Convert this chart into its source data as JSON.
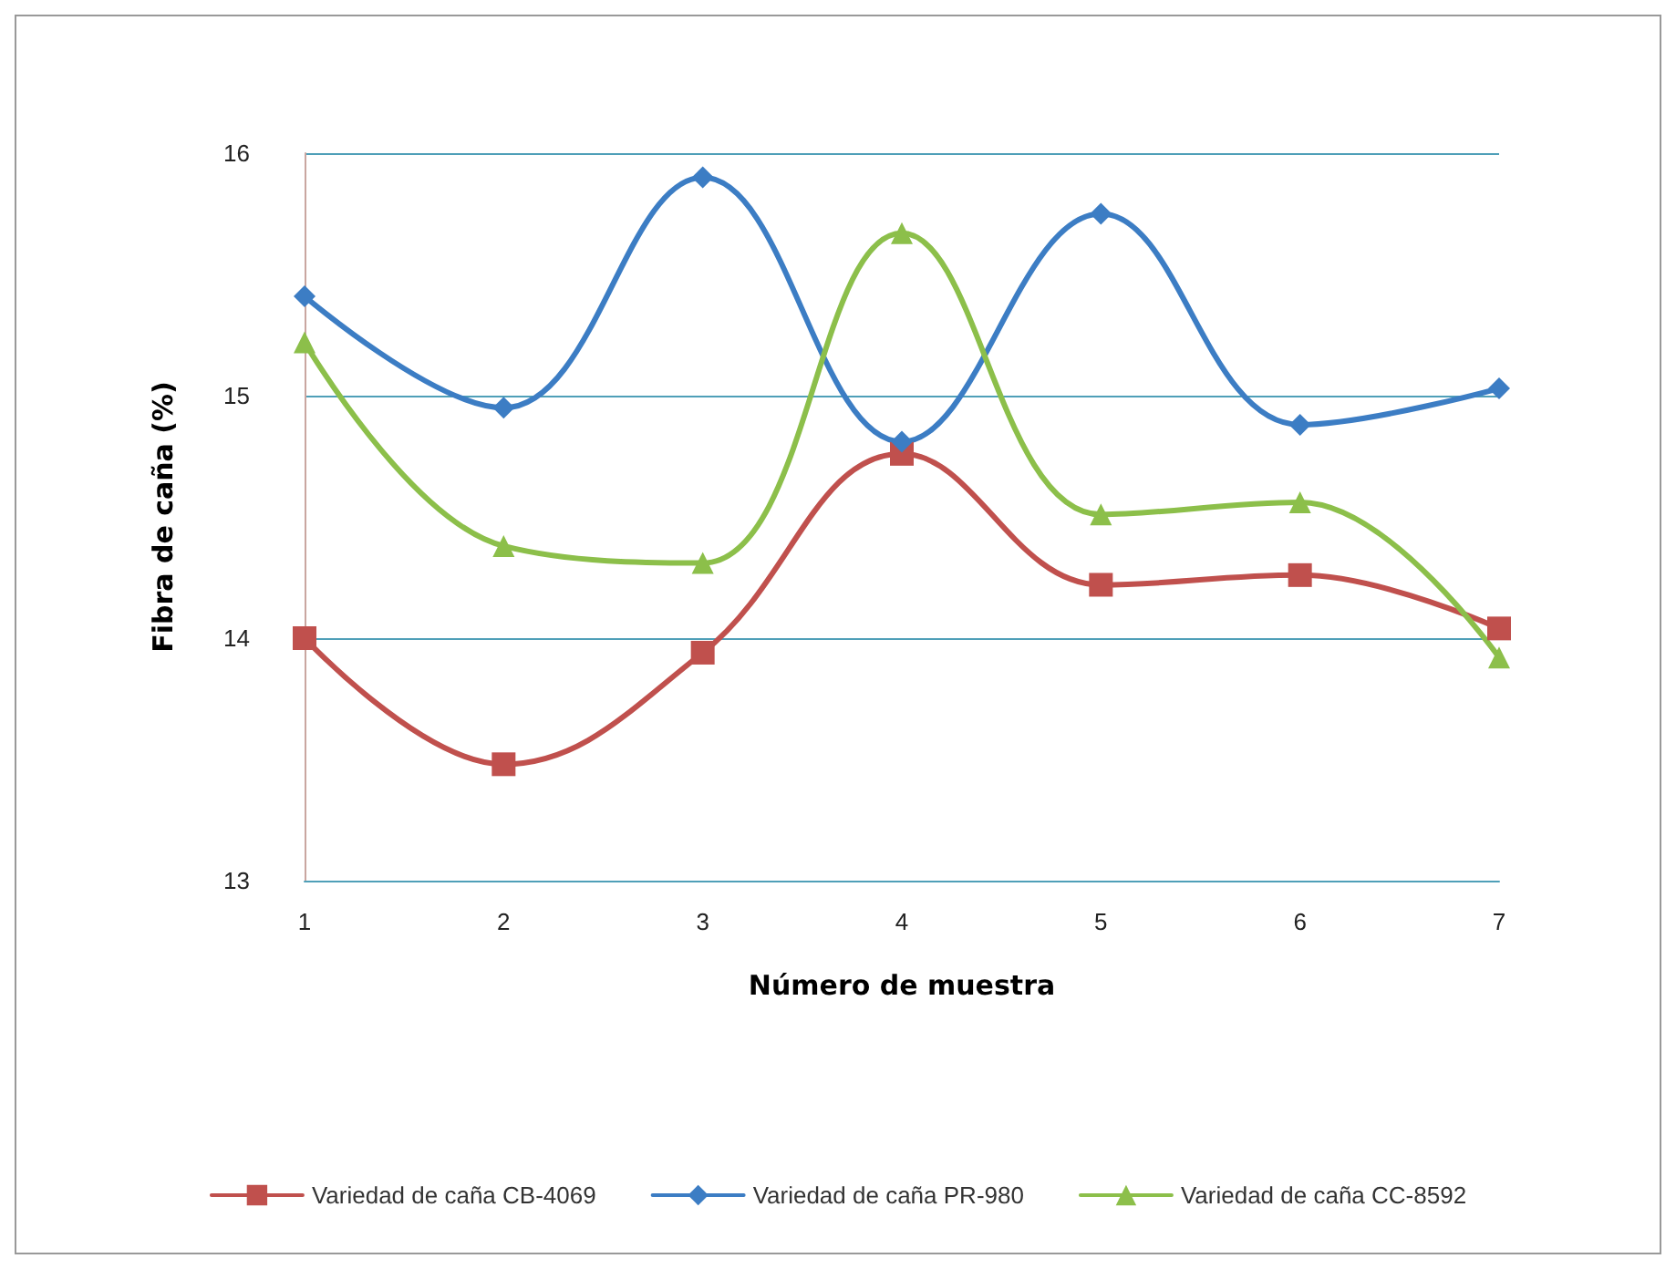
{
  "chart_data": {
    "type": "line",
    "xlabel": "Número de muestra",
    "ylabel": "Fibra de caña (%)",
    "categories": [
      "1",
      "2",
      "3",
      "4",
      "5",
      "6",
      "7"
    ],
    "series": [
      {
        "name": "Variedad de caña CB-4069",
        "color": "#c0504d",
        "marker": "square",
        "values": [
          14.0,
          13.48,
          13.94,
          14.76,
          14.22,
          14.26,
          14.04
        ]
      },
      {
        "name": "Variedad de caña PR-980",
        "color": "#3c7dc4",
        "marker": "diamond",
        "values": [
          15.41,
          14.95,
          15.9,
          14.81,
          15.75,
          14.88,
          15.03
        ]
      },
      {
        "name": "Variedad de caña CC-8592",
        "color": "#8cbf4a",
        "marker": "triangle",
        "values": [
          15.22,
          14.38,
          14.31,
          15.67,
          14.51,
          14.56,
          13.92
        ]
      }
    ],
    "ylim": [
      13,
      16
    ],
    "yticks": [
      13,
      14,
      15,
      16
    ],
    "grid": "y",
    "legend": "bottom"
  }
}
